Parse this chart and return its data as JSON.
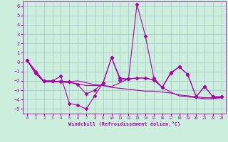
{
  "xlabel": "Windchill (Refroidissement éolien,°C)",
  "bg_color": "#cceedd",
  "grid_color": "#aacccc",
  "line_color": "#aa00aa",
  "xlim": [
    -0.5,
    23.5
  ],
  "ylim": [
    -5.5,
    6.5
  ],
  "yticks": [
    -5,
    -4,
    -3,
    -2,
    -1,
    0,
    1,
    2,
    3,
    4,
    5,
    6
  ],
  "xticks": [
    0,
    1,
    2,
    3,
    4,
    5,
    6,
    7,
    8,
    9,
    10,
    11,
    12,
    13,
    14,
    15,
    16,
    17,
    18,
    19,
    20,
    21,
    22,
    23
  ],
  "series": [
    {
      "x": [
        0,
        1,
        2,
        3,
        4,
        5,
        6,
        7,
        8,
        9,
        10,
        11,
        12,
        13,
        14,
        15,
        16,
        17,
        18,
        19,
        20,
        21,
        22,
        23
      ],
      "y": [
        0.2,
        -1.2,
        -2.0,
        -2.0,
        -1.5,
        -4.4,
        -4.6,
        -5.0,
        -3.6,
        -2.2,
        0.5,
        -1.7,
        -1.8,
        6.2,
        2.8,
        -1.7,
        -2.7,
        -1.2,
        -0.5,
        -1.3,
        -3.7,
        -2.6,
        -3.7,
        -3.7
      ],
      "marker": "D",
      "markersize": 2.5,
      "linewidth": 0.8
    },
    {
      "x": [
        0,
        1,
        2,
        3,
        4,
        5,
        6,
        7,
        8,
        9,
        10,
        11,
        12,
        13,
        14,
        15,
        16,
        17,
        18,
        19,
        20,
        21,
        22,
        23
      ],
      "y": [
        0.2,
        -1.2,
        -2.1,
        -2.1,
        -2.0,
        -2.1,
        -2.0,
        -2.2,
        -2.4,
        -2.5,
        -2.6,
        -2.2,
        -1.8,
        -1.7,
        -1.7,
        -1.9,
        -2.7,
        -3.2,
        -3.6,
        -3.7,
        -3.8,
        -3.9,
        -3.9,
        -3.8
      ],
      "marker": null,
      "markersize": 0,
      "linewidth": 0.8
    },
    {
      "x": [
        0,
        1,
        2,
        3,
        4,
        5,
        6,
        7,
        8,
        9,
        10,
        11,
        12,
        13,
        14,
        15,
        16,
        17,
        18,
        19,
        20,
        21,
        22,
        23
      ],
      "y": [
        0.2,
        -0.9,
        -2.1,
        -2.1,
        -2.1,
        -2.2,
        -2.3,
        -2.5,
        -2.5,
        -2.5,
        -2.7,
        -2.8,
        -2.9,
        -3.0,
        -3.1,
        -3.1,
        -3.2,
        -3.3,
        -3.5,
        -3.6,
        -3.7,
        -3.8,
        -3.8,
        -3.8
      ],
      "marker": null,
      "markersize": 0,
      "linewidth": 0.8
    },
    {
      "x": [
        0,
        1,
        2,
        3,
        4,
        5,
        6,
        7,
        8,
        9,
        10,
        11,
        12,
        13,
        14,
        15,
        16,
        17,
        18,
        19,
        20,
        21,
        22,
        23
      ],
      "y": [
        0.2,
        -1.0,
        -2.0,
        -2.0,
        -2.1,
        -2.1,
        -2.4,
        -3.4,
        -3.0,
        -2.2,
        0.5,
        -1.9,
        -1.8,
        -1.7,
        -1.7,
        -1.9,
        -2.7,
        -1.1,
        -0.5,
        -1.3,
        -3.7,
        -2.6,
        -3.7,
        -3.7
      ],
      "marker": "D",
      "markersize": 2.5,
      "linewidth": 0.8
    }
  ]
}
